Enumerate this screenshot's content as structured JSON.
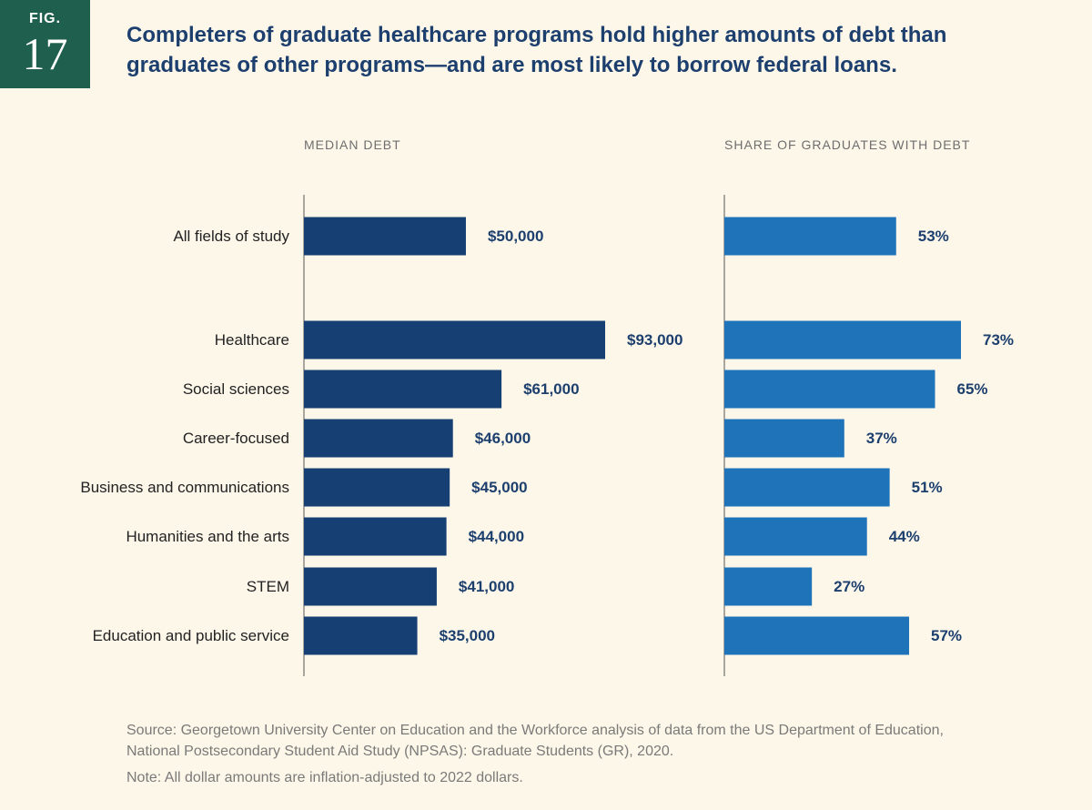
{
  "figure": {
    "label": "FIG.",
    "number": "17"
  },
  "title": "Completers of graduate healthcare programs hold higher amounts of debt than graduates of other programs—and are most likely to borrow federal loans.",
  "colors": {
    "debt_bar": "#163f73",
    "share_bar": "#1f73b9",
    "value_text": "#1c3f6e",
    "panel_title": "#6e6e6e",
    "badge": "#1f5f4d",
    "background": "#fdf7ea"
  },
  "chart_data": {
    "type": "bar",
    "orientation": "horizontal",
    "categories": [
      "All fields of study",
      "Healthcare",
      "Social sciences",
      "Career-focused",
      "Business and communications",
      "Humanities and the arts",
      "STEM",
      "Education and public service"
    ],
    "series": [
      {
        "name": "MEDIAN DEBT",
        "values": [
          50000,
          93000,
          61000,
          46000,
          45000,
          44000,
          41000,
          35000
        ],
        "labels": [
          "$50,000",
          "$93,000",
          "$61,000",
          "$46,000",
          "$45,000",
          "$44,000",
          "$41,000",
          "$35,000"
        ],
        "xlim": [
          0,
          93000
        ]
      },
      {
        "name": "SHARE OF GRADUATES WITH DEBT",
        "values": [
          53,
          73,
          65,
          37,
          51,
          44,
          27,
          57
        ],
        "labels": [
          "53%",
          "73%",
          "65%",
          "37%",
          "51%",
          "44%",
          "27%",
          "57%"
        ],
        "xlim": [
          0,
          73
        ]
      }
    ]
  },
  "source": "Source: Georgetown University Center on Education and the Workforce analysis of data from the US Department of Education, National Postsecondary Student Aid Study (NPSAS): Graduate Students (GR), 2020.",
  "note": "Note: All dollar amounts are inflation-adjusted to 2022 dollars."
}
